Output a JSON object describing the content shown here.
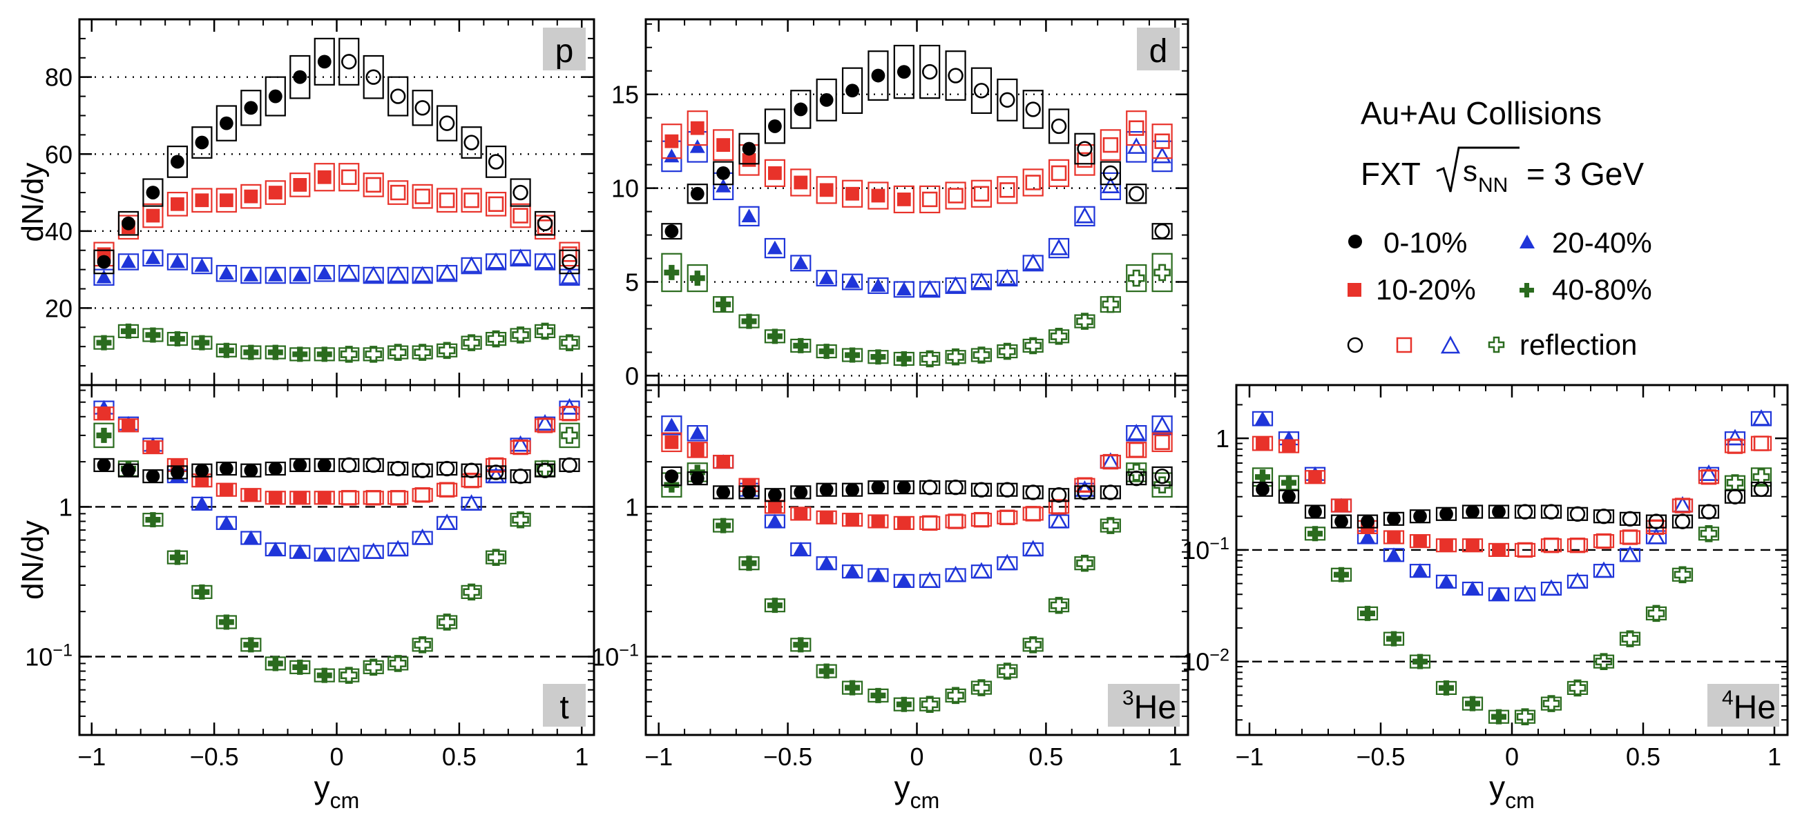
{
  "legend": {
    "title": "Au+Au Collisions",
    "energy_prefix": "FXT",
    "energy_sym": "s",
    "energy_sub": "NN",
    "energy_suffix": "= 3 GeV",
    "entries": [
      "0-10%",
      "10-20%",
      "20-40%",
      "40-80%"
    ],
    "reflection_label": "reflection"
  },
  "colors": {
    "c0_10": "#000000",
    "c10_20": "#e8322a",
    "c20_40": "#1f35d9",
    "c40_80": "#2a6b1e",
    "label_box": "#cccccc"
  },
  "chart_data": [
    {
      "type": "scatter",
      "panel": "p",
      "particle_label": "p",
      "particle_sup": "",
      "ylabel": "dN/dy",
      "xlabel": "",
      "log": false,
      "xlim": [
        -1.05,
        1.05
      ],
      "ylim": [
        0,
        95
      ],
      "yticks": [
        20,
        40,
        60,
        80
      ],
      "ytick_labels": [
        "20",
        "40",
        "60",
        "80"
      ],
      "grid_lines": [
        20,
        40,
        60,
        80
      ],
      "grid_style": "dotted",
      "x": [
        -0.95,
        -0.85,
        -0.75,
        -0.65,
        -0.55,
        -0.45,
        -0.35,
        -0.25,
        -0.15,
        -0.05
      ],
      "series": [
        {
          "name": "0-10%",
          "values": [
            32,
            42,
            50,
            58,
            63,
            68,
            72,
            75,
            80,
            84
          ],
          "box_half": [
            3,
            3,
            3.5,
            4,
            4,
            4.5,
            4.5,
            5,
            5.5,
            6
          ]
        },
        {
          "name": "10-20%",
          "values": [
            34,
            41,
            44,
            47,
            48,
            48,
            49,
            50,
            52,
            54
          ],
          "box_half": [
            3,
            3,
            3,
            3,
            3,
            3,
            3,
            3,
            3,
            3.5
          ]
        },
        {
          "name": "20-40%",
          "values": [
            28,
            32,
            33,
            32,
            31,
            29,
            28.5,
            28.5,
            28.5,
            29
          ],
          "box_half": [
            2,
            2,
            2,
            2,
            2,
            2,
            2,
            2,
            2,
            2
          ]
        },
        {
          "name": "40-80%",
          "values": [
            11,
            14,
            13,
            12,
            11,
            9,
            8.5,
            8.5,
            8,
            8
          ],
          "box_half": [
            1.2,
            1.2,
            1.2,
            1.2,
            1.2,
            1.2,
            1.2,
            1.2,
            1.2,
            1.2
          ]
        }
      ]
    },
    {
      "type": "scatter",
      "panel": "d",
      "particle_label": "d",
      "particle_sup": "",
      "ylabel": "",
      "xlabel": "",
      "log": false,
      "xlim": [
        -1.05,
        1.05
      ],
      "ylim": [
        -0.5,
        19
      ],
      "yticks": [
        0,
        5,
        10,
        15
      ],
      "ytick_labels": [
        "0",
        "5",
        "10",
        "15"
      ],
      "grid_lines": [
        0,
        5,
        10,
        15
      ],
      "grid_style": "dotted",
      "x": [
        -0.95,
        -0.85,
        -0.75,
        -0.65,
        -0.55,
        -0.45,
        -0.35,
        -0.25,
        -0.15,
        -0.05
      ],
      "series": [
        {
          "name": "0-10%",
          "values": [
            7.7,
            9.7,
            10.8,
            12.1,
            13.3,
            14.2,
            14.7,
            15.2,
            16,
            16.2
          ],
          "box_half": [
            0.4,
            0.5,
            0.6,
            0.8,
            0.9,
            1,
            1.1,
            1.2,
            1.3,
            1.4
          ]
        },
        {
          "name": "10-20%",
          "values": [
            12.5,
            13.2,
            12.3,
            11.5,
            10.8,
            10.3,
            9.9,
            9.7,
            9.6,
            9.4
          ],
          "box_half": [
            0.9,
            0.9,
            0.8,
            0.8,
            0.7,
            0.7,
            0.7,
            0.7,
            0.7,
            0.7
          ]
        },
        {
          "name": "20-40%",
          "values": [
            11.7,
            12.2,
            10.1,
            8.5,
            6.8,
            6,
            5.2,
            5,
            4.8,
            4.6
          ],
          "box_half": [
            0.8,
            0.8,
            0.7,
            0.5,
            0.5,
            0.4,
            0.4,
            0.4,
            0.4,
            0.4
          ]
        },
        {
          "name": "40-80%",
          "values": [
            5.5,
            5.2,
            3.8,
            2.9,
            2.1,
            1.6,
            1.3,
            1.1,
            1.0,
            0.9
          ],
          "box_half": [
            1.0,
            0.7,
            0.4,
            0.3,
            0.3,
            0.3,
            0.3,
            0.3,
            0.3,
            0.3
          ]
        }
      ]
    },
    {
      "type": "scatter",
      "panel": "t",
      "particle_label": "t",
      "particle_sup": "",
      "ylabel": "dN/dy",
      "xlabel": "y",
      "xlabel_sub": "cm",
      "log": true,
      "xlim": [
        -1.05,
        1.05
      ],
      "ylim": [
        0.03,
        6.5
      ],
      "yticks": [
        0.1,
        1
      ],
      "ytick_labels": [
        "10^-1",
        "1"
      ],
      "grid_lines": [
        0.1,
        1
      ],
      "grid_style": "dashed",
      "xticks": [
        -1,
        -0.5,
        0,
        0.5,
        1
      ],
      "xtick_labels": [
        "−1",
        "−0.5",
        "0",
        "0.5",
        "1"
      ],
      "x": [
        -0.95,
        -0.85,
        -0.75,
        -0.65,
        -0.55,
        -0.45,
        -0.35,
        -0.25,
        -0.15,
        -0.05
      ],
      "series": [
        {
          "name": "0-10%",
          "values": [
            1.9,
            1.75,
            1.6,
            1.7,
            1.75,
            1.8,
            1.75,
            1.8,
            1.9,
            1.9
          ],
          "box_half": [
            0.05,
            0.05,
            0.05,
            0.05,
            0.05,
            0.05,
            0.05,
            0.05,
            0.05,
            0.05
          ]
        },
        {
          "name": "10-20%",
          "values": [
            4.2,
            3.5,
            2.5,
            1.9,
            1.5,
            1.3,
            1.2,
            1.15,
            1.15,
            1.15
          ],
          "box_half": [
            0.1,
            0.08,
            0.06,
            0.05,
            0.05,
            0.05,
            0.05,
            0.05,
            0.05,
            0.05
          ]
        },
        {
          "name": "20-40%",
          "values": [
            4.6,
            3.6,
            2.6,
            1.6,
            1.05,
            0.78,
            0.62,
            0.52,
            0.5,
            0.48
          ],
          "box_half": [
            0.1,
            0.06,
            0.05,
            0.05,
            0.05,
            0.05,
            0.05,
            0.05,
            0.05,
            0.05
          ]
        },
        {
          "name": "40-80%",
          "values": [
            3.0,
            1.8,
            0.82,
            0.46,
            0.27,
            0.17,
            0.12,
            0.09,
            0.085,
            0.075
          ],
          "box_half": [
            0.2,
            0.12,
            0.05,
            0.05,
            0.05,
            0.05,
            0.05,
            0.05,
            0.06,
            0.07
          ]
        }
      ]
    },
    {
      "type": "scatter",
      "panel": "3He",
      "particle_label": "He",
      "particle_sup": "3",
      "ylabel": "",
      "xlabel": "y",
      "xlabel_sub": "cm",
      "log": true,
      "xlim": [
        -1.05,
        1.05
      ],
      "ylim": [
        0.03,
        6.5
      ],
      "yticks": [
        0.1,
        1
      ],
      "ytick_labels": [
        "10^-1",
        "1"
      ],
      "grid_lines": [
        0.1,
        1
      ],
      "grid_style": "dashed",
      "xticks": [
        -1,
        -0.5,
        0,
        0.5,
        1
      ],
      "xtick_labels": [
        "−1",
        "−0.5",
        "0",
        "0.5",
        "1"
      ],
      "x": [
        -0.95,
        -0.85,
        -0.75,
        -0.65,
        -0.55,
        -0.45,
        -0.35,
        -0.25,
        -0.15,
        -0.05
      ],
      "series": [
        {
          "name": "0-10%",
          "values": [
            1.6,
            1.55,
            1.25,
            1.25,
            1.2,
            1.25,
            1.3,
            1.3,
            1.35,
            1.35
          ],
          "box_half": [
            0.15,
            0.1,
            0.05,
            0.05,
            0.05,
            0.05,
            0.05,
            0.05,
            0.05,
            0.05
          ]
        },
        {
          "name": "10-20%",
          "values": [
            2.7,
            2.4,
            2.0,
            1.4,
            1.0,
            0.9,
            0.85,
            0.82,
            0.8,
            0.78
          ],
          "box_half": [
            0.15,
            0.12,
            0.08,
            0.05,
            0.05,
            0.05,
            0.05,
            0.05,
            0.05,
            0.06
          ]
        },
        {
          "name": "20-40%",
          "values": [
            3.5,
            3.1,
            2.0,
            1.3,
            0.8,
            0.52,
            0.42,
            0.37,
            0.35,
            0.32
          ],
          "box_half": [
            0.15,
            0.12,
            0.06,
            0.05,
            0.05,
            0.05,
            0.05,
            0.05,
            0.05,
            0.05
          ]
        },
        {
          "name": "40-80%",
          "values": [
            1.4,
            1.7,
            0.75,
            0.42,
            0.22,
            0.12,
            0.08,
            0.062,
            0.055,
            0.048
          ],
          "box_half": [
            0.2,
            0.15,
            0.07,
            0.1,
            0.07,
            0.05,
            0.05,
            0.05,
            0.06,
            0.07
          ]
        }
      ]
    },
    {
      "type": "scatter",
      "panel": "4He",
      "particle_label": "He",
      "particle_sup": "4",
      "ylabel": "",
      "xlabel": "y",
      "xlabel_sub": "cm",
      "log": true,
      "xlim": [
        -1.05,
        1.05
      ],
      "ylim": [
        0.0022,
        3.0
      ],
      "yticks": [
        0.01,
        0.1,
        1
      ],
      "ytick_labels": [
        "10^-2",
        "10^-1",
        "1"
      ],
      "grid_lines": [
        0.01,
        0.1
      ],
      "grid_style": "dashed",
      "xticks": [
        -1,
        -0.5,
        0,
        0.5,
        1
      ],
      "xtick_labels": [
        "−1",
        "−0.5",
        "0",
        "0.5",
        "1"
      ],
      "x": [
        -0.95,
        -0.85,
        -0.75,
        -0.65,
        -0.55,
        -0.45,
        -0.35,
        -0.25,
        -0.15,
        -0.05
      ],
      "series": [
        {
          "name": "0-10%",
          "values": [
            0.35,
            0.3,
            0.22,
            0.18,
            0.18,
            0.19,
            0.2,
            0.21,
            0.22,
            0.22
          ],
          "box_half": [
            0.15,
            0.1,
            0.05,
            0.05,
            0.05,
            0.05,
            0.05,
            0.05,
            0.05,
            0.05
          ]
        },
        {
          "name": "10-20%",
          "values": [
            0.9,
            0.85,
            0.45,
            0.25,
            0.16,
            0.13,
            0.12,
            0.11,
            0.11,
            0.1
          ],
          "box_half": [
            0.15,
            0.1,
            0.06,
            0.06,
            0.06,
            0.06,
            0.06,
            0.06,
            0.06,
            0.08
          ]
        },
        {
          "name": "20-40%",
          "values": [
            1.5,
            1.0,
            0.48,
            0.25,
            0.13,
            0.09,
            0.065,
            0.052,
            0.045,
            0.04
          ],
          "box_half": [
            0.15,
            0.1,
            0.05,
            0.05,
            0.05,
            0.05,
            0.05,
            0.05,
            0.05,
            0.05
          ]
        },
        {
          "name": "40-80%",
          "values": [
            0.45,
            0.4,
            0.14,
            0.06,
            0.027,
            0.016,
            0.01,
            0.0058,
            0.0042,
            0.0032
          ],
          "box_half": [
            0.2,
            0.15,
            0.05,
            0.05,
            0.05,
            0.05,
            0.05,
            0.05,
            0.06,
            0.07
          ]
        }
      ]
    }
  ]
}
